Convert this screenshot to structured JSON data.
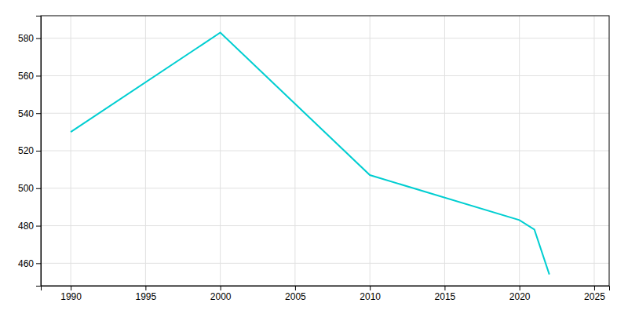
{
  "chart_data": {
    "type": "line",
    "x": [
      1990,
      2000,
      2010,
      2020,
      2021,
      2022
    ],
    "values": [
      530,
      583,
      507,
      483,
      478,
      454
    ],
    "color": "#00CED1",
    "xlim": [
      1988,
      2026
    ],
    "ylim": [
      448,
      592
    ],
    "xticks": [
      1990,
      1995,
      2000,
      2005,
      2010,
      2015,
      2020,
      2025
    ],
    "yticks": [
      460,
      480,
      500,
      520,
      540,
      560,
      580
    ],
    "grid": true
  }
}
